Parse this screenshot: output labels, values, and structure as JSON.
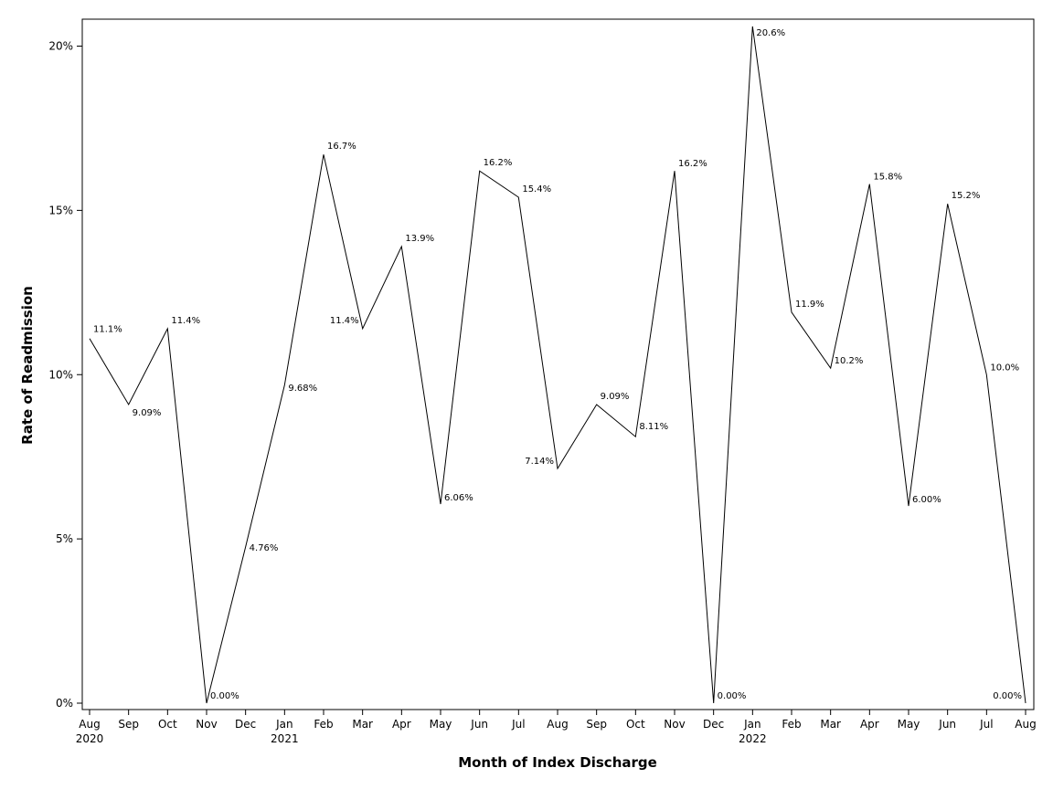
{
  "chart_data": {
    "type": "line",
    "title": "",
    "xlabel": "Month of Index Discharge",
    "ylabel": "Rate of Readmission",
    "ylim": [
      0,
      20.6
    ],
    "yticks": [
      0,
      5,
      10,
      15,
      20
    ],
    "ytick_labels": [
      "0%",
      "5%",
      "10%",
      "15%",
      "20%"
    ],
    "grid": false,
    "legend": "none",
    "line_color": "#000000",
    "categories": [
      {
        "month": "Aug",
        "year": "2020"
      },
      {
        "month": "Sep",
        "year": ""
      },
      {
        "month": "Oct",
        "year": ""
      },
      {
        "month": "Nov",
        "year": ""
      },
      {
        "month": "Dec",
        "year": ""
      },
      {
        "month": "Jan",
        "year": "2021"
      },
      {
        "month": "Feb",
        "year": ""
      },
      {
        "month": "Mar",
        "year": ""
      },
      {
        "month": "Apr",
        "year": ""
      },
      {
        "month": "May",
        "year": ""
      },
      {
        "month": "Jun",
        "year": ""
      },
      {
        "month": "Jul",
        "year": ""
      },
      {
        "month": "Aug",
        "year": ""
      },
      {
        "month": "Sep",
        "year": ""
      },
      {
        "month": "Oct",
        "year": ""
      },
      {
        "month": "Nov",
        "year": ""
      },
      {
        "month": "Dec",
        "year": ""
      },
      {
        "month": "Jan",
        "year": "2022"
      },
      {
        "month": "Feb",
        "year": ""
      },
      {
        "month": "Mar",
        "year": ""
      },
      {
        "month": "Apr",
        "year": ""
      },
      {
        "month": "May",
        "year": ""
      },
      {
        "month": "Jun",
        "year": ""
      },
      {
        "month": "Jul",
        "year": ""
      },
      {
        "month": "Aug",
        "year": ""
      }
    ],
    "values": [
      11.1,
      9.09,
      11.4,
      0.0,
      4.76,
      9.68,
      16.7,
      11.4,
      13.9,
      6.06,
      16.2,
      15.4,
      7.14,
      9.09,
      8.11,
      16.2,
      0.0,
      20.6,
      11.9,
      10.2,
      15.8,
      6.0,
      15.2,
      10.0,
      0.0
    ],
    "data_labels": [
      "11.1%",
      "9.09%",
      "11.4%",
      "0.00%",
      "4.76%",
      "9.68%",
      "16.7%",
      "11.4%",
      "13.9%",
      "6.06%",
      "16.2%",
      "15.4%",
      "7.14%",
      "9.09%",
      "8.11%",
      "16.2%",
      "0.00%",
      "20.6%",
      "11.9%",
      "10.2%",
      "15.8%",
      "6.00%",
      "15.2%",
      "10.0%",
      "0.00%"
    ]
  }
}
